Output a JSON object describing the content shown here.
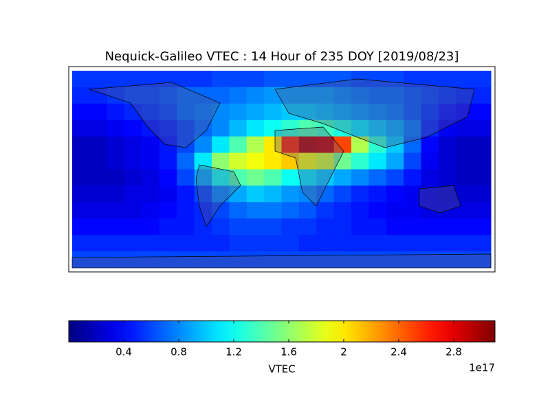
{
  "chart_data": {
    "type": "heatmap",
    "title": "Nequick-Galileo VTEC : 14 Hour of 235 DOY [2019/08/23]",
    "values": [
      [
        0.55,
        0.55,
        0.55,
        0.55,
        0.55,
        0.55,
        0.55,
        0.55,
        0.6,
        0.6,
        0.6,
        0.65,
        0.65,
        0.65,
        0.65,
        0.65,
        0.6,
        0.6,
        0.6,
        0.55,
        0.55,
        0.55,
        0.55,
        0.55
      ],
      [
        0.5,
        0.5,
        0.55,
        0.6,
        0.6,
        0.65,
        0.7,
        0.7,
        0.7,
        0.75,
        0.8,
        0.85,
        0.85,
        0.85,
        0.85,
        0.8,
        0.75,
        0.7,
        0.7,
        0.65,
        0.6,
        0.55,
        0.5,
        0.5
      ],
      [
        0.4,
        0.4,
        0.45,
        0.5,
        0.55,
        0.6,
        0.7,
        0.75,
        0.8,
        0.85,
        0.9,
        0.95,
        1.0,
        1.0,
        0.95,
        0.9,
        0.85,
        0.8,
        0.75,
        0.65,
        0.55,
        0.45,
        0.4,
        0.4
      ],
      [
        0.3,
        0.3,
        0.35,
        0.4,
        0.45,
        0.5,
        0.6,
        0.7,
        0.8,
        0.95,
        1.1,
        1.2,
        1.3,
        1.4,
        1.35,
        1.25,
        1.1,
        1.0,
        0.9,
        0.75,
        0.5,
        0.35,
        0.3,
        0.3
      ],
      [
        0.2,
        0.2,
        0.25,
        0.3,
        0.35,
        0.45,
        0.6,
        0.8,
        1.1,
        1.4,
        1.7,
        2.0,
        2.6,
        2.95,
        2.9,
        2.5,
        1.7,
        1.3,
        1.0,
        0.7,
        0.4,
        0.25,
        0.2,
        0.2
      ],
      [
        0.2,
        0.2,
        0.25,
        0.3,
        0.35,
        0.45,
        0.7,
        1.1,
        1.6,
        1.8,
        1.9,
        2.0,
        2.1,
        1.9,
        1.8,
        1.5,
        1.3,
        1.1,
        0.9,
        0.6,
        0.35,
        0.25,
        0.2,
        0.2
      ],
      [
        0.2,
        0.2,
        0.2,
        0.25,
        0.3,
        0.4,
        0.6,
        0.9,
        1.2,
        1.4,
        1.5,
        1.4,
        1.2,
        1.1,
        1.0,
        0.9,
        0.8,
        0.7,
        0.6,
        0.45,
        0.3,
        0.25,
        0.2,
        0.2
      ],
      [
        0.25,
        0.25,
        0.25,
        0.3,
        0.3,
        0.35,
        0.45,
        0.6,
        0.8,
        0.9,
        1.0,
        0.95,
        0.85,
        0.8,
        0.7,
        0.6,
        0.5,
        0.45,
        0.4,
        0.35,
        0.3,
        0.25,
        0.25,
        0.25
      ],
      [
        0.3,
        0.3,
        0.3,
        0.3,
        0.35,
        0.4,
        0.45,
        0.5,
        0.6,
        0.7,
        0.75,
        0.75,
        0.7,
        0.65,
        0.55,
        0.5,
        0.45,
        0.4,
        0.35,
        0.35,
        0.3,
        0.3,
        0.3,
        0.3
      ],
      [
        0.4,
        0.4,
        0.4,
        0.4,
        0.4,
        0.45,
        0.45,
        0.5,
        0.55,
        0.6,
        0.6,
        0.6,
        0.55,
        0.55,
        0.5,
        0.5,
        0.45,
        0.45,
        0.4,
        0.4,
        0.4,
        0.4,
        0.4,
        0.4
      ],
      [
        0.5,
        0.5,
        0.5,
        0.5,
        0.5,
        0.5,
        0.5,
        0.5,
        0.5,
        0.55,
        0.55,
        0.55,
        0.55,
        0.5,
        0.5,
        0.5,
        0.5,
        0.5,
        0.5,
        0.5,
        0.5,
        0.5,
        0.5,
        0.5
      ],
      [
        0.6,
        0.6,
        0.6,
        0.6,
        0.6,
        0.6,
        0.6,
        0.6,
        0.6,
        0.6,
        0.6,
        0.6,
        0.6,
        0.6,
        0.6,
        0.6,
        0.6,
        0.6,
        0.6,
        0.6,
        0.6,
        0.6,
        0.6,
        0.6
      ]
    ],
    "clim": [
      0,
      3.1
    ],
    "cticks": [
      0.4,
      0.8,
      1.2,
      1.6,
      2.0,
      2.4,
      2.8
    ],
    "colorbar_label": "VTEC",
    "offset_label": "1e17"
  }
}
